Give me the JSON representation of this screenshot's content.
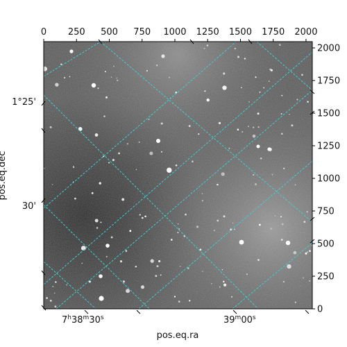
{
  "chart_data": {
    "type": "image",
    "xlabel": "pos.eq.ra",
    "ylabel": "pos.eq.dec",
    "pixel_axes": {
      "x_range": [
        0,
        2048
      ],
      "y_range": [
        0,
        2048
      ],
      "top_ticks": [
        0,
        250,
        500,
        750,
        1000,
        1250,
        1500,
        1750,
        2000
      ],
      "right_ticks": [
        0,
        250,
        500,
        750,
        1000,
        1250,
        1500,
        1750,
        2000
      ]
    },
    "world_ticks": {
      "ra": [
        {
          "label": "7h38m30s",
          "h": "7",
          "m": "38",
          "s": "30"
        },
        {
          "label": "39m00s",
          "m": "39",
          "s": "00"
        }
      ],
      "dec": [
        {
          "label": "1°25'"
        },
        {
          "label": "30'"
        }
      ]
    },
    "grid": true,
    "grid_color": "#40d0d0",
    "colormap": "gray"
  }
}
